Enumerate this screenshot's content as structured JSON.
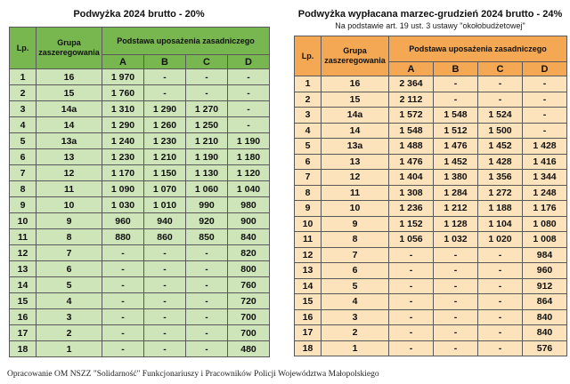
{
  "footer": "Opracowanie OM NSZZ \"Solidarność\" Funkcjonariuszy i Pracowników Policji Województwa Małopolskiego",
  "tables": [
    {
      "title": "Podwyżka 2024 brutto - 20%",
      "subtitle": "",
      "colors": {
        "header": "#78b750",
        "body": "#cee5b9",
        "border": "#595959"
      },
      "headers": {
        "lp": "Lp.",
        "group": "Grupa zaszeregowania",
        "base": "Podstawa uposażenia zasadniczego",
        "cols": [
          "A",
          "B",
          "C",
          "D"
        ]
      },
      "rows": [
        {
          "lp": "1",
          "group": "16",
          "a": "1 970",
          "b": "-",
          "c": "-",
          "d": "-"
        },
        {
          "lp": "2",
          "group": "15",
          "a": "1 760",
          "b": "-",
          "c": "-",
          "d": "-"
        },
        {
          "lp": "3",
          "group": "14a",
          "a": "1 310",
          "b": "1 290",
          "c": "1 270",
          "d": "-"
        },
        {
          "lp": "4",
          "group": "14",
          "a": "1 290",
          "b": "1 260",
          "c": "1 250",
          "d": "-"
        },
        {
          "lp": "5",
          "group": "13a",
          "a": "1 240",
          "b": "1 230",
          "c": "1 210",
          "d": "1 190"
        },
        {
          "lp": "6",
          "group": "13",
          "a": "1 230",
          "b": "1 210",
          "c": "1 190",
          "d": "1 180"
        },
        {
          "lp": "7",
          "group": "12",
          "a": "1 170",
          "b": "1 150",
          "c": "1 130",
          "d": "1 120"
        },
        {
          "lp": "8",
          "group": "11",
          "a": "1 090",
          "b": "1 070",
          "c": "1 060",
          "d": "1 040"
        },
        {
          "lp": "9",
          "group": "10",
          "a": "1 030",
          "b": "1 010",
          "c": "990",
          "d": "980"
        },
        {
          "lp": "10",
          "group": "9",
          "a": "960",
          "b": "940",
          "c": "920",
          "d": "900"
        },
        {
          "lp": "11",
          "group": "8",
          "a": "880",
          "b": "860",
          "c": "850",
          "d": "840"
        },
        {
          "lp": "12",
          "group": "7",
          "a": "-",
          "b": "-",
          "c": "-",
          "d": "820"
        },
        {
          "lp": "13",
          "group": "6",
          "a": "-",
          "b": "-",
          "c": "-",
          "d": "800"
        },
        {
          "lp": "14",
          "group": "5",
          "a": "-",
          "b": "-",
          "c": "-",
          "d": "760"
        },
        {
          "lp": "15",
          "group": "4",
          "a": "-",
          "b": "-",
          "c": "-",
          "d": "720"
        },
        {
          "lp": "16",
          "group": "3",
          "a": "-",
          "b": "-",
          "c": "-",
          "d": "700"
        },
        {
          "lp": "17",
          "group": "2",
          "a": "-",
          "b": "-",
          "c": "-",
          "d": "700"
        },
        {
          "lp": "18",
          "group": "1",
          "a": "-",
          "b": "-",
          "c": "-",
          "d": "480"
        }
      ]
    },
    {
      "title": "Podwyżka wypłacana marzec-grudzień 2024 brutto - 24%",
      "subtitle": "Na podstawie art. 19 ust. 3 ustawy \"okołobudżetowej\"",
      "colors": {
        "header": "#f4a853",
        "body": "#fce3bc",
        "border": "#595959"
      },
      "headers": {
        "lp": "Lp.",
        "group": "Grupa zaszeregowania",
        "base": "Podstawa uposażenia zasadniczego",
        "cols": [
          "A",
          "B",
          "C",
          "D"
        ]
      },
      "rows": [
        {
          "lp": "1",
          "group": "16",
          "a": "2 364",
          "b": "-",
          "c": "-",
          "d": "-"
        },
        {
          "lp": "2",
          "group": "15",
          "a": "2 112",
          "b": "-",
          "c": "-",
          "d": "-"
        },
        {
          "lp": "3",
          "group": "14a",
          "a": "1 572",
          "b": "1 548",
          "c": "1 524",
          "d": "-"
        },
        {
          "lp": "4",
          "group": "14",
          "a": "1 548",
          "b": "1 512",
          "c": "1 500",
          "d": "-"
        },
        {
          "lp": "5",
          "group": "13a",
          "a": "1 488",
          "b": "1 476",
          "c": "1 452",
          "d": "1 428"
        },
        {
          "lp": "6",
          "group": "13",
          "a": "1 476",
          "b": "1 452",
          "c": "1 428",
          "d": "1 416"
        },
        {
          "lp": "7",
          "group": "12",
          "a": "1 404",
          "b": "1 380",
          "c": "1 356",
          "d": "1 344"
        },
        {
          "lp": "8",
          "group": "11",
          "a": "1 308",
          "b": "1 284",
          "c": "1 272",
          "d": "1 248"
        },
        {
          "lp": "9",
          "group": "10",
          "a": "1 236",
          "b": "1 212",
          "c": "1 188",
          "d": "1 176"
        },
        {
          "lp": "10",
          "group": "9",
          "a": "1 152",
          "b": "1 128",
          "c": "1 104",
          "d": "1 080"
        },
        {
          "lp": "11",
          "group": "8",
          "a": "1 056",
          "b": "1 032",
          "c": "1 020",
          "d": "1 008"
        },
        {
          "lp": "12",
          "group": "7",
          "a": "-",
          "b": "-",
          "c": "-",
          "d": "984"
        },
        {
          "lp": "13",
          "group": "6",
          "a": "-",
          "b": "-",
          "c": "-",
          "d": "960"
        },
        {
          "lp": "14",
          "group": "5",
          "a": "-",
          "b": "-",
          "c": "-",
          "d": "912"
        },
        {
          "lp": "15",
          "group": "4",
          "a": "-",
          "b": "-",
          "c": "-",
          "d": "864"
        },
        {
          "lp": "16",
          "group": "3",
          "a": "-",
          "b": "-",
          "c": "-",
          "d": "840"
        },
        {
          "lp": "17",
          "group": "2",
          "a": "-",
          "b": "-",
          "c": "-",
          "d": "840"
        },
        {
          "lp": "18",
          "group": "1",
          "a": "-",
          "b": "-",
          "c": "-",
          "d": "576"
        }
      ]
    }
  ]
}
